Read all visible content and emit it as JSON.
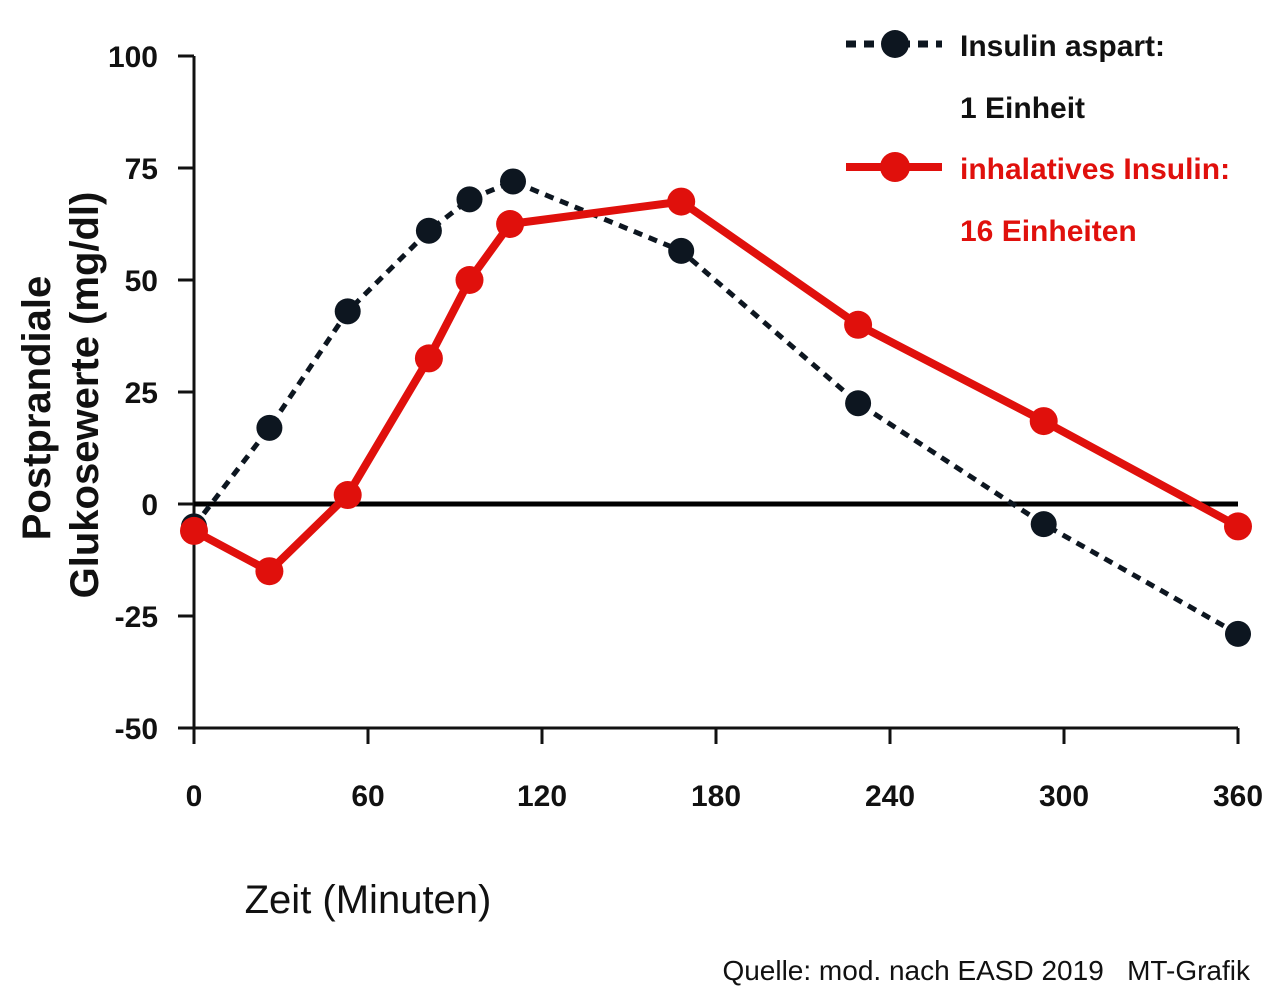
{
  "chart_data": {
    "type": "line",
    "xlabel": "Zeit (Minuten)",
    "ylabel_line1": "Postprandiale",
    "ylabel_line2": "Glukosewerte (mg/dl)",
    "xlim": [
      0,
      360
    ],
    "ylim": [
      -50,
      100
    ],
    "x_ticks": [
      0,
      60,
      120,
      180,
      240,
      300,
      360
    ],
    "y_ticks": [
      100,
      75,
      50,
      25,
      0,
      -25,
      -50
    ],
    "zero_line": true,
    "grid": false,
    "legend_position": "top-right",
    "series": [
      {
        "name_line1": "Insulin aspart:",
        "name_line2": "1 Einheit",
        "color": "#0d1620",
        "style": "dotted",
        "x": [
          0,
          26,
          53,
          81,
          95,
          110,
          168,
          229,
          293,
          360
        ],
        "y": [
          -5,
          17,
          43,
          61,
          68,
          72,
          56.5,
          22.5,
          -4.5,
          -29
        ]
      },
      {
        "name_line1": "inhalatives Insulin:",
        "name_line2": "16 Einheiten",
        "color": "#e0100c",
        "style": "solid",
        "x": [
          0,
          26,
          53,
          81,
          95,
          109,
          168,
          229,
          293,
          360
        ],
        "y": [
          -6,
          -15,
          2,
          32.5,
          50,
          62.5,
          67.5,
          40,
          18.5,
          -5
        ]
      }
    ]
  },
  "source": "Quelle: mod. nach EASD 2019   MT-Grafik"
}
